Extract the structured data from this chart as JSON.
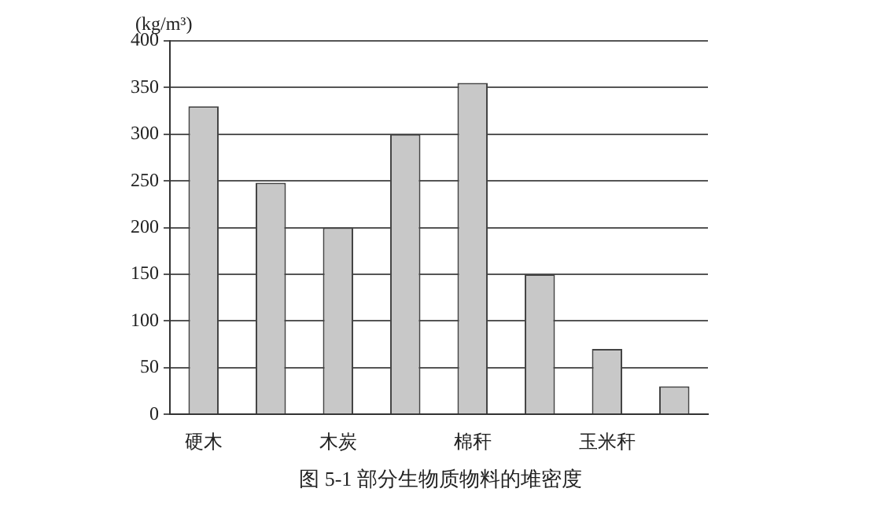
{
  "chart_data": {
    "type": "bar",
    "title": "图 5-1   部分生物质物料的堆密度",
    "ylabel": "(kg/m³)",
    "categories": [
      "硬木",
      null,
      "木炭",
      null,
      "棉秆",
      null,
      "玉米秆",
      null
    ],
    "values": [
      330,
      248,
      200,
      300,
      355,
      150,
      70,
      30
    ],
    "color": "#c8c8c8",
    "ylim": [
      0,
      400
    ],
    "yticks": [
      0,
      50,
      100,
      150,
      200,
      250,
      300,
      350,
      400
    ],
    "grid": "y",
    "legend": false
  }
}
